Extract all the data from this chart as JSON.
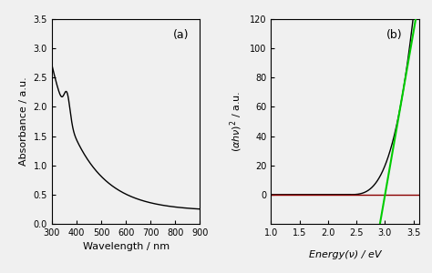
{
  "panel_a": {
    "label": "(a)",
    "xlabel": "Wavelength / nm",
    "ylabel": "Absorbance / a.u.",
    "xlim": [
      300,
      900
    ],
    "ylim": [
      0.0,
      3.5
    ],
    "xticks": [
      300,
      400,
      500,
      600,
      700,
      800,
      900
    ],
    "yticks": [
      0.0,
      0.5,
      1.0,
      1.5,
      2.0,
      2.5,
      3.0,
      3.5
    ],
    "curve_color": "#000000",
    "bg_color": "#f0f0f0"
  },
  "panel_b": {
    "label": "(b)",
    "xlabel_prefix": "Energy(",
    "xlabel_suffix": ") / eV",
    "ylabel_prefix": "(",
    "ylabel_suffix": ") / a.u.",
    "xlim": [
      1.0,
      3.6
    ],
    "ylim": [
      -20,
      120
    ],
    "xticks": [
      1.0,
      1.5,
      2.0,
      2.5,
      3.0,
      3.5
    ],
    "yticks": [
      0,
      20,
      40,
      60,
      80,
      100,
      120
    ],
    "tauc_color": "#000000",
    "hline_color": "#8b0000",
    "tangent_color": "#00cc00",
    "bg_color": "#f0f0f0"
  },
  "figure_bg": "#f0f0f0"
}
